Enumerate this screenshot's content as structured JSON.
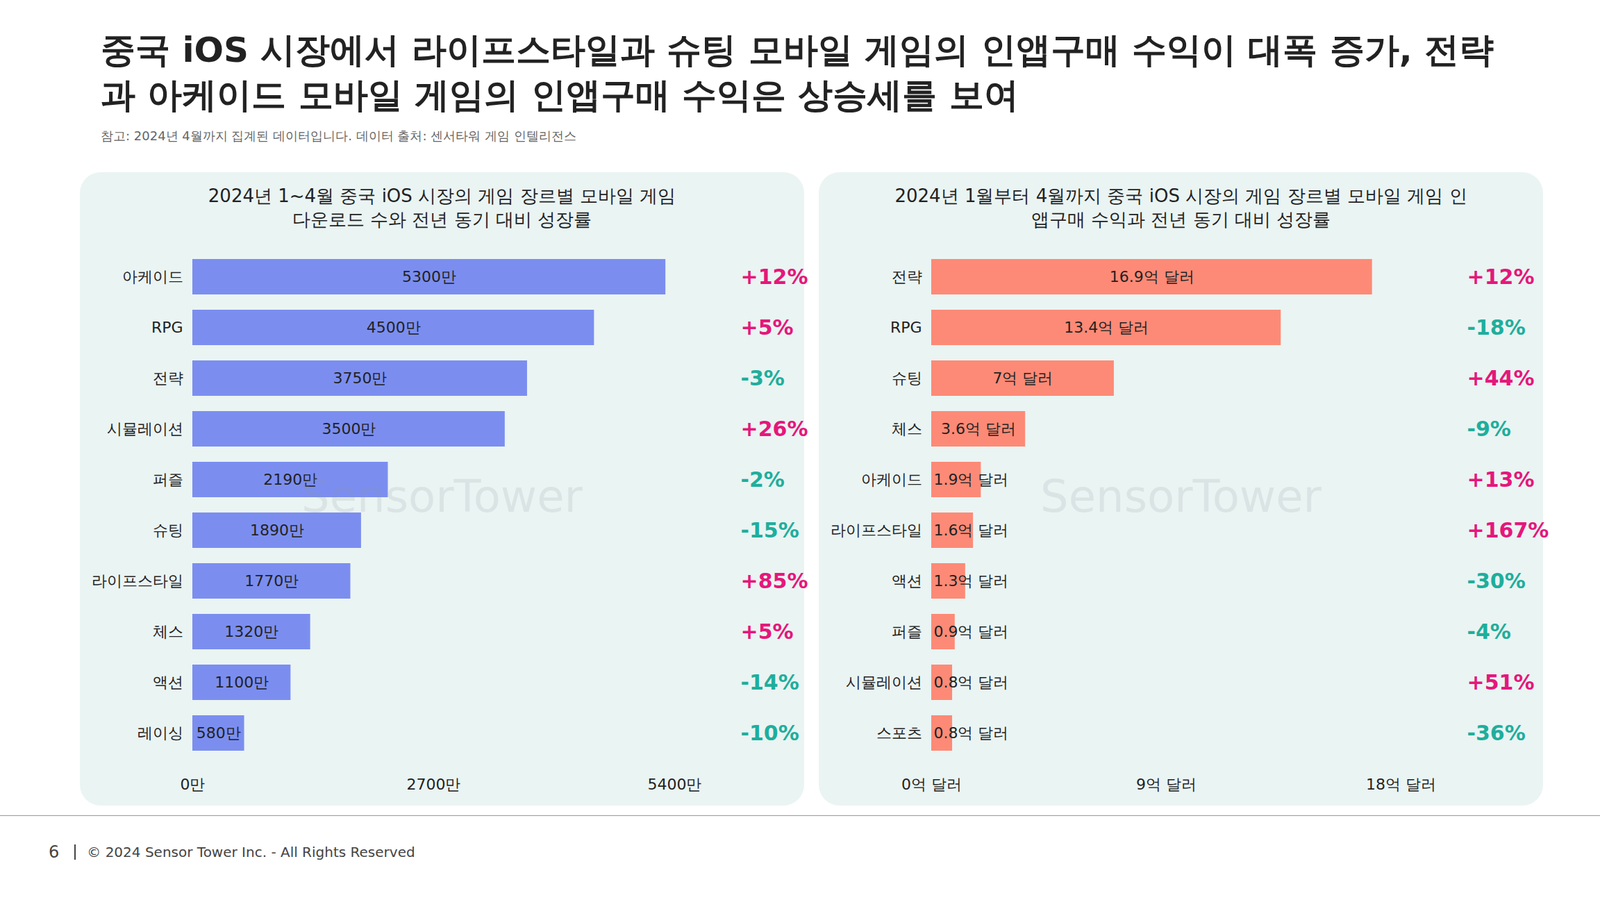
{
  "title": "중국 iOS 시장에서 라이프스타일과 슈팅 모바일 게임의 인앱구매 수익이 대폭 증가, 전략과 아케이드 모바일 게임의 인앱구매 수익은 상승세를 보여",
  "note": "참고: 2024년 4월까지 집계된 데이터입니다. 데이터 출처: 센서타워 게임 인텔리전스",
  "watermark": "SensorTower",
  "footer": {
    "page": "6",
    "text": "© 2024 Sensor Tower Inc. - All Rights Reserved"
  },
  "chart_data": [
    {
      "type": "bar",
      "orientation": "horizontal",
      "data_labels": true,
      "title": "2024년 1~4월 중국 iOS 시장의 게임 장르별 모바일 게임 다운로드 수와 전년 동기 대비 성장률",
      "categories": [
        "아케이드",
        "RPG",
        "전략",
        "시뮬레이션",
        "퍼즐",
        "슈팅",
        "라이프스타일",
        "체스",
        "액션",
        "레이싱"
      ],
      "values": [
        5300,
        4500,
        3750,
        3500,
        2190,
        1890,
        1770,
        1320,
        1100,
        580
      ],
      "value_labels": [
        "5300만",
        "4500만",
        "3750만",
        "3500만",
        "2190만",
        "1890만",
        "1770만",
        "1320만",
        "1100만",
        "580만"
      ],
      "growth": [
        12,
        5,
        -3,
        26,
        -2,
        -15,
        85,
        5,
        -14,
        -10
      ],
      "growth_labels": [
        "+12%",
        "+5%",
        "-3%",
        "+26%",
        "-2%",
        "-15%",
        "+85%",
        "+5%",
        "-14%",
        "-10%"
      ],
      "color": "#7b8ef0",
      "xlim": [
        0,
        5400
      ],
      "xticks": [
        {
          "value": 0,
          "label": "0만"
        },
        {
          "value": 2700,
          "label": "2700만"
        },
        {
          "value": 5400,
          "label": "5400만"
        }
      ],
      "grid": false
    },
    {
      "type": "bar",
      "orientation": "horizontal",
      "data_labels": true,
      "title": "2024년 1월부터 4월까지 중국 iOS 시장의 게임 장르별 모바일 게임 인앱구매 수익과 전년 동기 대비 성장률",
      "categories": [
        "전략",
        "RPG",
        "슈팅",
        "체스",
        "아케이드",
        "라이프스타일",
        "액션",
        "퍼즐",
        "시뮬레이션",
        "스포츠"
      ],
      "values": [
        16.9,
        13.4,
        7,
        3.6,
        1.9,
        1.6,
        1.3,
        0.9,
        0.8,
        0.8
      ],
      "value_labels": [
        "16.9억 달러",
        "13.4억 달러",
        "7억 달러",
        "3.6억 달러",
        "1.9억 달러",
        "1.6억 달러",
        "1.3억 달러",
        "0.9억 달러",
        "0.8억 달러",
        "0.8억 달러"
      ],
      "growth": [
        12,
        -18,
        44,
        -9,
        13,
        167,
        -30,
        -4,
        51,
        -36
      ],
      "growth_labels": [
        "+12%",
        "-18%",
        "+44%",
        "-9%",
        "+13%",
        "+167%",
        "-30%",
        "-4%",
        "+51%",
        "-36%"
      ],
      "color": "#fd8a76",
      "xlim": [
        0,
        18
      ],
      "xticks": [
        {
          "value": 0,
          "label": "0억 달러"
        },
        {
          "value": 9,
          "label": "9억 달러"
        },
        {
          "value": 18,
          "label": "18억 달러"
        }
      ],
      "grid": false
    }
  ]
}
